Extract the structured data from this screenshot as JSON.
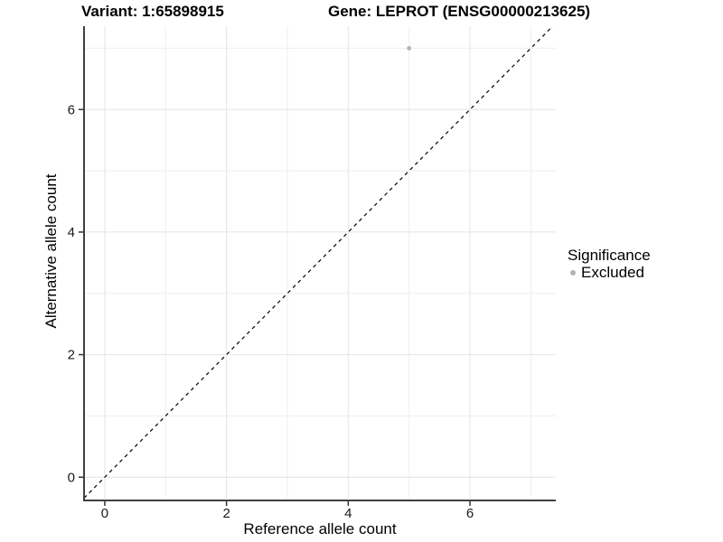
{
  "titles": {
    "variant": "Variant: 1:65898915",
    "gene": "Gene: LEPROT (ENSG00000213625)"
  },
  "legend": {
    "title": "Significance",
    "items": [
      {
        "label": "Excluded",
        "color": "#b3b3b3"
      }
    ]
  },
  "chart_data": {
    "type": "scatter",
    "xlabel": "Reference allele count",
    "ylabel": "Alternative allele count",
    "xlim": [
      -0.34,
      7.41
    ],
    "ylim": [
      -0.35,
      7.36
    ],
    "x_major_ticks": [
      0,
      2,
      4,
      6
    ],
    "x_minor_ticks": [
      1,
      3,
      5,
      7
    ],
    "y_major_ticks": [
      0,
      2,
      4,
      6
    ],
    "y_minor_ticks": [
      1,
      3,
      5,
      7
    ],
    "grid": true,
    "legend_position": "right",
    "series": [
      {
        "name": "Excluded",
        "color": "#b3b3b3",
        "points": [
          {
            "x": 5,
            "y": 7
          }
        ]
      }
    ],
    "reference_line": {
      "type": "identity",
      "equation": "y = x",
      "style": "dashed",
      "color": "#000000"
    }
  },
  "colors": {
    "background": "#ffffff",
    "grid_major": "#e4e4e4",
    "grid_minor": "#efefef",
    "axis_line": "#404040",
    "tick_mark": "#333333",
    "tick_text": "#1a1a1a",
    "point": "#b3b3b3"
  }
}
